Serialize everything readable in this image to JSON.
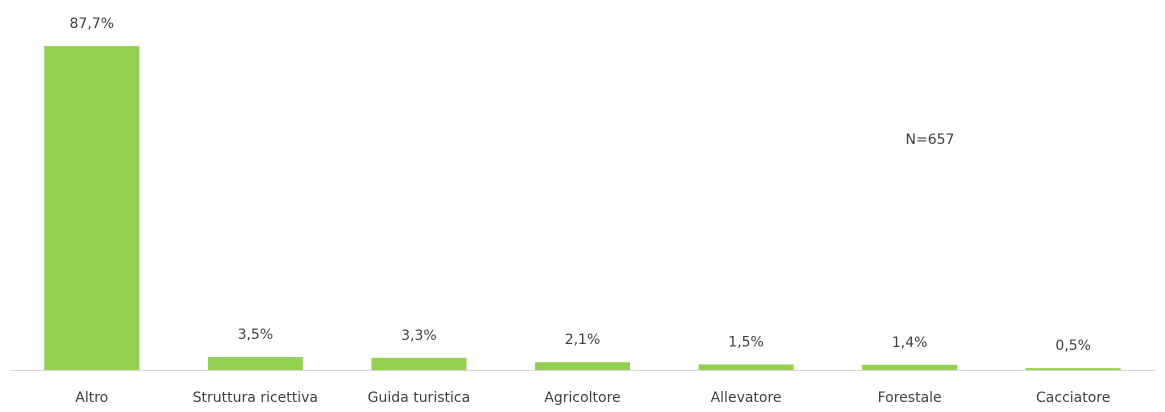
{
  "chart_data": {
    "type": "bar",
    "categories": [
      "Altro",
      "Struttura ricettiva",
      "Guida turistica",
      "Agricoltore",
      "Allevatore",
      "Forestale",
      "Cacciatore"
    ],
    "values": [
      87.7,
      3.5,
      3.3,
      2.1,
      1.5,
      1.4,
      0.5
    ],
    "value_labels": [
      "87,7%",
      "3,5%",
      "3,3%",
      "2,1%",
      "1,5%",
      "1,4%",
      "0,5%"
    ],
    "color": "#92d050",
    "annotation": "N=657",
    "ylim": [
      0,
      100
    ]
  }
}
